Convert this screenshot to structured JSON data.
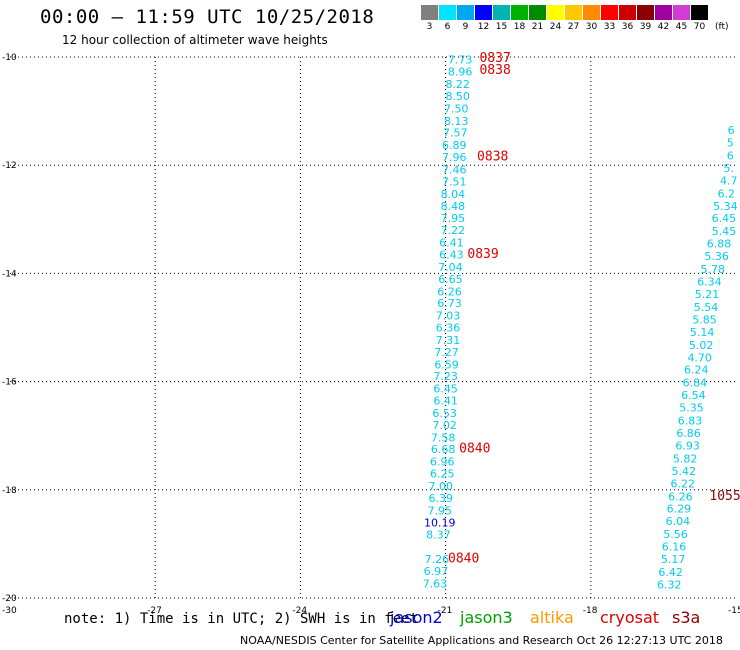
{
  "header": {
    "title": "00:00 – 11:59 UTC 10/25/2018",
    "subtitle": "12 hour collection of altimeter wave heights"
  },
  "colorbar": {
    "labels": [
      "3",
      "6",
      "9",
      "12",
      "15",
      "18",
      "21",
      "24",
      "27",
      "30",
      "33",
      "36",
      "39",
      "42",
      "45",
      "70"
    ],
    "colors": [
      "#808080",
      "#00e5ff",
      "#00a8f0",
      "#0000ff",
      "#00b4b4",
      "#00b000",
      "#008c00",
      "#ffff00",
      "#ffc800",
      "#ff8c00",
      "#ff0000",
      "#cc0000",
      "#8b0000",
      "#a000a0",
      "#d23cd2",
      "#000000"
    ],
    "unit": "(ft)"
  },
  "footer": {
    "note": "note: 1) Time is in UTC; 2) SWH is in feet",
    "credit": "NOAA/NESDIS Center for Satellite Applications and Research    Oct 26 12:27:13 UTC 2018"
  },
  "legend": [
    {
      "name": "jason2",
      "color": "#0000dd"
    },
    {
      "name": "jason3",
      "color": "#00a000"
    },
    {
      "name": "altika",
      "color": "#ff9900"
    },
    {
      "name": "cryosat",
      "color": "#dd0000"
    },
    {
      "name": "s3a",
      "color": "#8b0000"
    }
  ],
  "chart_data": {
    "type": "scatter",
    "title": "00:00 – 11:59 UTC 10/25/2018",
    "subtitle": "12 hour collection of altimeter wave heights",
    "xlabel": "",
    "ylabel": "",
    "xlim": [
      -30,
      -15
    ],
    "ylim": [
      -20,
      -10
    ],
    "xticks": [
      -30,
      -27,
      -24,
      -21,
      -18,
      -15
    ],
    "yticks": [
      -10,
      -12,
      -14,
      -16,
      -18,
      -20
    ],
    "grid": true,
    "colors": {
      "cyan": "#00ccee",
      "blue": "#0000dd",
      "red": "#dd0000",
      "darkred": "#8b0000"
    },
    "series": [
      {
        "name": "jason2",
        "color_key": "cyan",
        "points": [
          {
            "x": -20.7,
            "y": -10.05,
            "v": "7.73"
          },
          {
            "x": -20.7,
            "y": -10.27,
            "v": "8.96"
          },
          {
            "x": -20.75,
            "y": -10.5,
            "v": "8.22"
          },
          {
            "x": -20.75,
            "y": -10.72,
            "v": "8.50"
          },
          {
            "x": -20.78,
            "y": -10.95,
            "v": "7.50"
          },
          {
            "x": -20.78,
            "y": -11.18,
            "v": "8.13"
          },
          {
            "x": -20.8,
            "y": -11.4,
            "v": "7.57"
          },
          {
            "x": -20.82,
            "y": -11.63,
            "v": "6.89"
          },
          {
            "x": -20.82,
            "y": -11.85,
            "v": "7.96"
          },
          {
            "x": -20.82,
            "y": -12.08,
            "v": "7.46"
          },
          {
            "x": -20.82,
            "y": -12.3,
            "v": "7.51"
          },
          {
            "x": -20.85,
            "y": -12.53,
            "v": "8.04"
          },
          {
            "x": -20.85,
            "y": -12.75,
            "v": "8.48"
          },
          {
            "x": -20.85,
            "y": -12.98,
            "v": "7.95"
          },
          {
            "x": -20.85,
            "y": -13.2,
            "v": "7.22"
          },
          {
            "x": -20.88,
            "y": -13.43,
            "v": "6.41"
          },
          {
            "x": -20.88,
            "y": -13.65,
            "v": "6.43"
          },
          {
            "x": -20.9,
            "y": -13.88,
            "v": "7.04"
          },
          {
            "x": -20.9,
            "y": -14.1,
            "v": "6.65"
          },
          {
            "x": -20.92,
            "y": -14.33,
            "v": "6.26"
          },
          {
            "x": -20.92,
            "y": -14.55,
            "v": "6.73"
          },
          {
            "x": -20.95,
            "y": -14.78,
            "v": "7.03"
          },
          {
            "x": -20.95,
            "y": -15.0,
            "v": "6.36"
          },
          {
            "x": -20.95,
            "y": -15.23,
            "v": "7.31"
          },
          {
            "x": -20.98,
            "y": -15.45,
            "v": "7.27"
          },
          {
            "x": -20.98,
            "y": -15.68,
            "v": "6.59"
          },
          {
            "x": -21.0,
            "y": -15.9,
            "v": "7.23"
          },
          {
            "x": -21.0,
            "y": -16.13,
            "v": "6.45"
          },
          {
            "x": -21.0,
            "y": -16.35,
            "v": "6.41"
          },
          {
            "x": -21.02,
            "y": -16.58,
            "v": "6.53"
          },
          {
            "x": -21.02,
            "y": -16.8,
            "v": "7.02"
          },
          {
            "x": -21.05,
            "y": -17.03,
            "v": "7.58"
          },
          {
            "x": -21.05,
            "y": -17.25,
            "v": "6.68"
          },
          {
            "x": -21.07,
            "y": -17.48,
            "v": "6.96"
          },
          {
            "x": -21.07,
            "y": -17.7,
            "v": "6.25"
          },
          {
            "x": -21.1,
            "y": -17.93,
            "v": "7.00"
          },
          {
            "x": -21.1,
            "y": -18.15,
            "v": "6.39"
          },
          {
            "x": -21.12,
            "y": -18.38,
            "v": "7.95"
          },
          {
            "x": -21.12,
            "y": -18.6,
            "v": "10.19",
            "color_key": "blue"
          },
          {
            "x": -21.15,
            "y": -18.83,
            "v": "8.37"
          },
          {
            "x": -21.18,
            "y": -19.28,
            "v": "7.26"
          },
          {
            "x": -21.2,
            "y": -19.5,
            "v": "6.97"
          },
          {
            "x": -21.22,
            "y": -19.73,
            "v": "7.63"
          }
        ],
        "times": [
          {
            "x": -20.3,
            "y": -10.0,
            "t": "0837"
          },
          {
            "x": -20.3,
            "y": -10.22,
            "t": "0838"
          },
          {
            "x": -20.35,
            "y": -11.82,
            "t": "0838"
          },
          {
            "x": -20.55,
            "y": -13.62,
            "t": "0839"
          },
          {
            "x": -20.72,
            "y": -17.22,
            "t": "0840"
          },
          {
            "x": -20.95,
            "y": -19.25,
            "t": "0840"
          }
        ]
      },
      {
        "name": "s3a",
        "color_key": "cyan",
        "points": [
          {
            "x": -15.1,
            "y": -11.35,
            "v": "6"
          },
          {
            "x": -15.12,
            "y": -11.58,
            "v": "5"
          },
          {
            "x": -15.12,
            "y": -11.82,
            "v": "6"
          },
          {
            "x": -15.15,
            "y": -12.05,
            "v": "5."
          },
          {
            "x": -15.15,
            "y": -12.28,
            "v": "4.7"
          },
          {
            "x": -15.2,
            "y": -12.52,
            "v": "6.2"
          },
          {
            "x": -15.22,
            "y": -12.75,
            "v": "5.34"
          },
          {
            "x": -15.25,
            "y": -12.98,
            "v": "6.45"
          },
          {
            "x": -15.25,
            "y": -13.22,
            "v": "5.45"
          },
          {
            "x": -15.35,
            "y": -13.45,
            "v": "6.88"
          },
          {
            "x": -15.4,
            "y": -13.68,
            "v": "5.36"
          },
          {
            "x": -15.48,
            "y": -13.92,
            "v": "5.78"
          },
          {
            "x": -15.55,
            "y": -14.15,
            "v": "6.34"
          },
          {
            "x": -15.6,
            "y": -14.38,
            "v": "5.21"
          },
          {
            "x": -15.62,
            "y": -14.62,
            "v": "5.54"
          },
          {
            "x": -15.65,
            "y": -14.85,
            "v": "5.85"
          },
          {
            "x": -15.7,
            "y": -15.08,
            "v": "5.14"
          },
          {
            "x": -15.72,
            "y": -15.32,
            "v": "5.02"
          },
          {
            "x": -15.75,
            "y": -15.55,
            "v": "4.70"
          },
          {
            "x": -15.82,
            "y": -15.78,
            "v": "6.24"
          },
          {
            "x": -15.85,
            "y": -16.02,
            "v": "6.84"
          },
          {
            "x": -15.88,
            "y": -16.25,
            "v": "6.54"
          },
          {
            "x": -15.92,
            "y": -16.48,
            "v": "5.35"
          },
          {
            "x": -15.95,
            "y": -16.72,
            "v": "6.83"
          },
          {
            "x": -15.98,
            "y": -16.95,
            "v": "6.86"
          },
          {
            "x": -16.0,
            "y": -17.18,
            "v": "6.93"
          },
          {
            "x": -16.05,
            "y": -17.42,
            "v": "5.82"
          },
          {
            "x": -16.08,
            "y": -17.65,
            "v": "5.42"
          },
          {
            "x": -16.1,
            "y": -17.88,
            "v": "6.22"
          },
          {
            "x": -16.15,
            "y": -18.12,
            "v": "6.26"
          },
          {
            "x": -16.18,
            "y": -18.35,
            "v": "6.29"
          },
          {
            "x": -16.2,
            "y": -18.58,
            "v": "6.04"
          },
          {
            "x": -16.25,
            "y": -18.82,
            "v": "5.56"
          },
          {
            "x": -16.28,
            "y": -19.05,
            "v": "6.16"
          },
          {
            "x": -16.3,
            "y": -19.28,
            "v": "5.17"
          },
          {
            "x": -16.35,
            "y": -19.52,
            "v": "6.42"
          },
          {
            "x": -16.38,
            "y": -19.75,
            "v": "6.32"
          }
        ],
        "times": [
          {
            "x": -15.55,
            "y": -18.1,
            "t": "1055"
          }
        ]
      }
    ]
  }
}
